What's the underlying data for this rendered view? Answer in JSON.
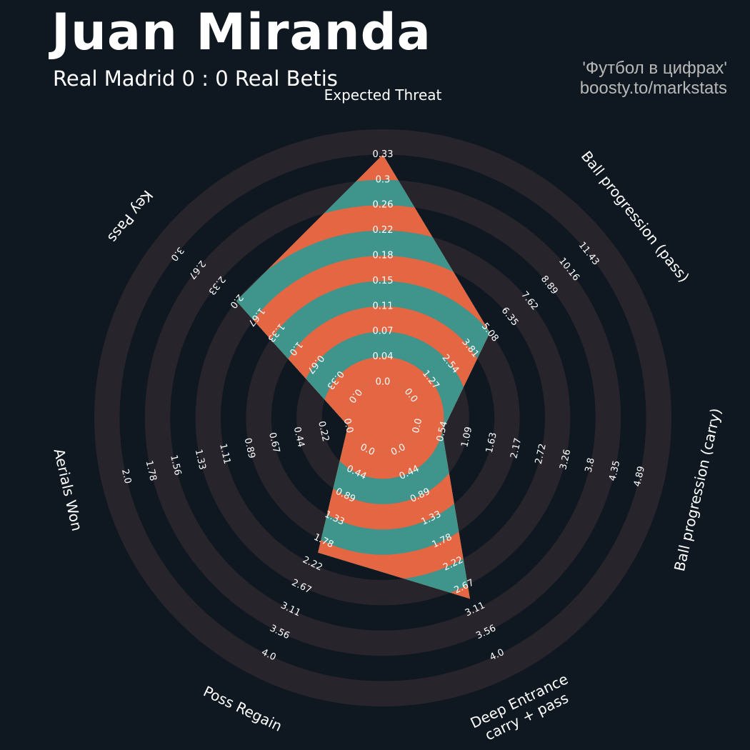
{
  "header": {
    "player_name": "Juan Miranda",
    "match": "Real Madrid 0 : 0 Real Betis",
    "credit_line1": "'Футбол в цифрах'",
    "credit_line2": "boosty.to/markstats"
  },
  "colors": {
    "background": "#0f1820",
    "ring_band": "#28242b",
    "value_primary": "#3f958c",
    "value_alternate": "#e46642",
    "text": "#ffffff",
    "credit_text": "#b8b8b8"
  },
  "chart_data": {
    "type": "radar",
    "title": "Juan Miranda",
    "subtitle": "Real Madrid 0 : 0 Real Betis",
    "parameters": [
      {
        "label": "Expected Threat",
        "min": 0.0,
        "max": 0.33,
        "value": 0.33,
        "ticks": [
          "0.0",
          "0.04",
          "0.07",
          "0.11",
          "0.15",
          "0.18",
          "0.22",
          "0.26",
          "0.3",
          "0.33"
        ]
      },
      {
        "label": "Ball progression (pass)",
        "min": 0.0,
        "max": 11.43,
        "value": 5.08,
        "ticks": [
          "0.0",
          "1.27",
          "2.54",
          "3.81",
          "5.08",
          "6.35",
          "7.62",
          "8.89",
          "10.16",
          "11.43"
        ]
      },
      {
        "label": "Ball progression (carry)",
        "min": 0.0,
        "max": 4.89,
        "value": 0.54,
        "ticks": [
          "0.0",
          "0.54",
          "1.09",
          "1.63",
          "2.17",
          "2.72",
          "3.26",
          "3.8",
          "4.35",
          "4.89"
        ]
      },
      {
        "label": "Deep Entrance\ncarry + pass",
        "min": 0.0,
        "max": 4.0,
        "value": 2.9,
        "ticks": [
          "0.0",
          "0.44",
          "0.89",
          "1.33",
          "1.78",
          "2.22",
          "2.67",
          "3.11",
          "3.56",
          "4.0"
        ]
      },
      {
        "label": "Poss Regain",
        "min": 0.0,
        "max": 4.0,
        "value": 2.0,
        "ticks": [
          "0.0",
          "0.44",
          "0.89",
          "1.33",
          "1.78",
          "2.22",
          "2.67",
          "3.11",
          "3.56",
          "4.0"
        ]
      },
      {
        "label": "Aerials Won",
        "min": 0.0,
        "max": 2.0,
        "value": 0.0,
        "ticks": [
          "0.0",
          "0.22",
          "0.44",
          "0.67",
          "0.89",
          "1.11",
          "1.33",
          "1.56",
          "1.78",
          "2.0"
        ]
      },
      {
        "label": "Key Pass",
        "min": 0.0,
        "max": 3.0,
        "value": 2.0,
        "ticks": [
          "0.0",
          "0.33",
          "0.67",
          "1.0",
          "1.33",
          "1.67",
          "2.0",
          "2.33",
          "2.67",
          "3.0"
        ]
      }
    ]
  }
}
